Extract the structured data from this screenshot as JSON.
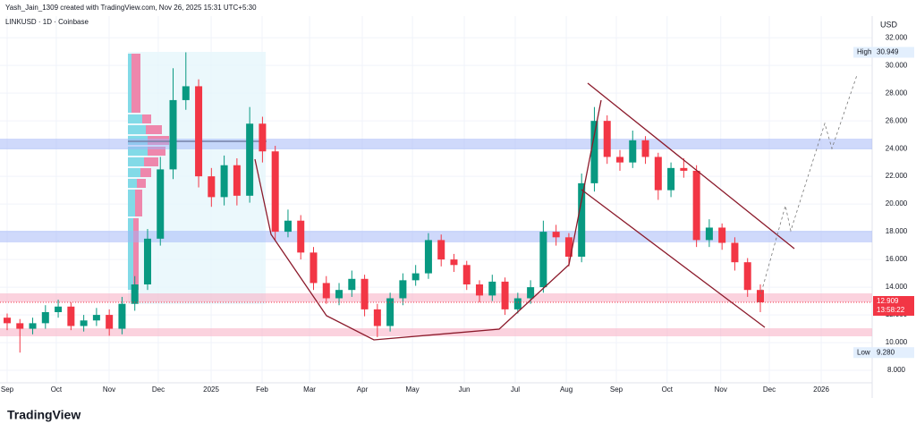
{
  "header": {
    "attribution": "Yash_Jain_1309 created with TradingView.com, Nov 26, 2025 15:31 UTC+5:30",
    "symbol": "LINKUSD · 1D · Coinbase",
    "logo": "TradingView"
  },
  "chart_data": {
    "type": "candlestick",
    "currency": "USD",
    "up_color": "#089981",
    "down_color": "#f23645",
    "open": [
      11.8,
      11.4,
      11.0,
      11.4,
      12.2,
      12.6,
      11.2,
      11.6,
      12.0,
      11.0,
      12.8,
      14.2,
      17.5,
      22.5,
      27.5,
      28.5,
      22.0,
      20.5,
      22.8,
      20.6,
      25.8,
      23.8,
      18.0,
      18.8,
      16.5,
      14.3,
      13.2,
      13.8,
      14.6,
      12.4,
      11.2,
      13.2,
      14.5,
      15.0,
      17.4,
      16.0,
      15.6,
      14.2,
      13.4,
      14.4,
      12.4,
      13.2,
      14.0,
      18.0,
      17.6,
      16.2,
      21.5,
      26.0,
      23.4,
      23.0,
      24.6,
      23.4,
      21.0,
      22.6,
      22.4,
      17.4,
      18.3,
      17.2,
      15.8,
      13.8
    ],
    "high": [
      12.1,
      11.7,
      11.8,
      12.7,
      13.1,
      12.9,
      12.0,
      12.5,
      12.4,
      13.3,
      14.8,
      18.2,
      23.4,
      29.8,
      30.949,
      29.0,
      22.6,
      23.5,
      23.3,
      27.0,
      26.3,
      24.2,
      19.6,
      19.2,
      16.9,
      14.8,
      14.3,
      15.2,
      14.9,
      12.8,
      13.6,
      15.0,
      15.6,
      17.9,
      17.8,
      16.4,
      15.9,
      14.5,
      14.9,
      14.7,
      13.6,
      14.5,
      18.8,
      18.5,
      17.9,
      22.2,
      27.0,
      26.4,
      23.9,
      25.3,
      24.9,
      23.7,
      23.0,
      23.3,
      22.8,
      18.9,
      18.6,
      17.6,
      16.1,
      14.2
    ],
    "low": [
      10.9,
      9.28,
      10.6,
      11.0,
      11.8,
      10.9,
      10.8,
      11.2,
      10.5,
      10.6,
      12.3,
      13.8,
      17.0,
      21.8,
      26.8,
      21.2,
      19.8,
      19.9,
      19.9,
      20.1,
      23.0,
      17.4,
      17.6,
      16.0,
      13.8,
      12.8,
      12.7,
      13.3,
      11.9,
      10.4,
      10.8,
      12.7,
      14.1,
      14.6,
      15.5,
      15.1,
      13.8,
      12.9,
      13.0,
      12.0,
      12.1,
      12.8,
      13.6,
      17.0,
      15.5,
      15.8,
      20.9,
      22.9,
      22.4,
      22.6,
      22.9,
      20.3,
      20.5,
      21.9,
      16.9,
      16.9,
      16.7,
      15.2,
      13.3,
      12.2
    ],
    "close": [
      11.4,
      11.0,
      11.4,
      12.2,
      12.6,
      11.2,
      11.6,
      12.0,
      11.0,
      12.8,
      14.2,
      17.5,
      22.5,
      27.5,
      28.5,
      22.0,
      20.5,
      22.8,
      20.6,
      25.8,
      23.8,
      18.0,
      18.8,
      16.5,
      14.3,
      13.2,
      13.8,
      14.6,
      12.4,
      11.2,
      13.2,
      14.5,
      15.0,
      17.4,
      16.0,
      15.6,
      14.2,
      13.4,
      14.4,
      12.4,
      13.2,
      14.0,
      18.0,
      17.6,
      16.2,
      21.5,
      26.0,
      23.4,
      23.0,
      24.6,
      23.4,
      21.0,
      22.6,
      22.4,
      17.4,
      18.3,
      17.2,
      15.8,
      13.8,
      12.909
    ],
    "xlim": [
      -0.56,
      67.76
    ],
    "xticks": [
      {
        "value": 0,
        "label": "Sep"
      },
      {
        "value": 3.85,
        "label": "Oct"
      },
      {
        "value": 7.99,
        "label": "Nov"
      },
      {
        "value": 11.84,
        "label": "Dec"
      },
      {
        "value": 15.98,
        "label": "2025"
      },
      {
        "value": 19.97,
        "label": "Feb"
      },
      {
        "value": 23.69,
        "label": "Mar"
      },
      {
        "value": 27.82,
        "label": "Apr"
      },
      {
        "value": 31.75,
        "label": "May"
      },
      {
        "value": 35.81,
        "label": "Jun"
      },
      {
        "value": 39.8,
        "label": "Jul"
      },
      {
        "value": 43.8,
        "label": "Aug"
      },
      {
        "value": 47.72,
        "label": "Sep"
      },
      {
        "value": 51.7,
        "label": "Oct"
      },
      {
        "value": 55.9,
        "label": "Nov"
      },
      {
        "value": 59.7,
        "label": "Dec"
      },
      {
        "value": 63.77,
        "label": "2026"
      }
    ],
    "ylim": [
      7.1,
      32.4
    ],
    "yticks": [
      {
        "value": 8,
        "label": "8.000"
      },
      {
        "value": 10,
        "label": "10.000"
      },
      {
        "value": 12,
        "label": "12.000"
      },
      {
        "value": 14,
        "label": "14.000"
      },
      {
        "value": 16,
        "label": "16.000"
      },
      {
        "value": 18,
        "label": "18.000"
      },
      {
        "value": 20,
        "label": "20.000"
      },
      {
        "value": 22,
        "label": "22.000"
      },
      {
        "value": 24,
        "label": "24.000"
      },
      {
        "value": 26,
        "label": "26.000"
      },
      {
        "value": 28,
        "label": "28.000"
      },
      {
        "value": 30,
        "label": "30.000"
      },
      {
        "value": 32,
        "label": "32.000"
      }
    ],
    "high_marker": {
      "label": "High",
      "value": 30.949
    },
    "low_marker": {
      "label": "Low",
      "value": 9.28,
      "value_label": "9.280"
    },
    "last_price": {
      "value": 12.909,
      "countdown": "13:58:22"
    }
  }
}
